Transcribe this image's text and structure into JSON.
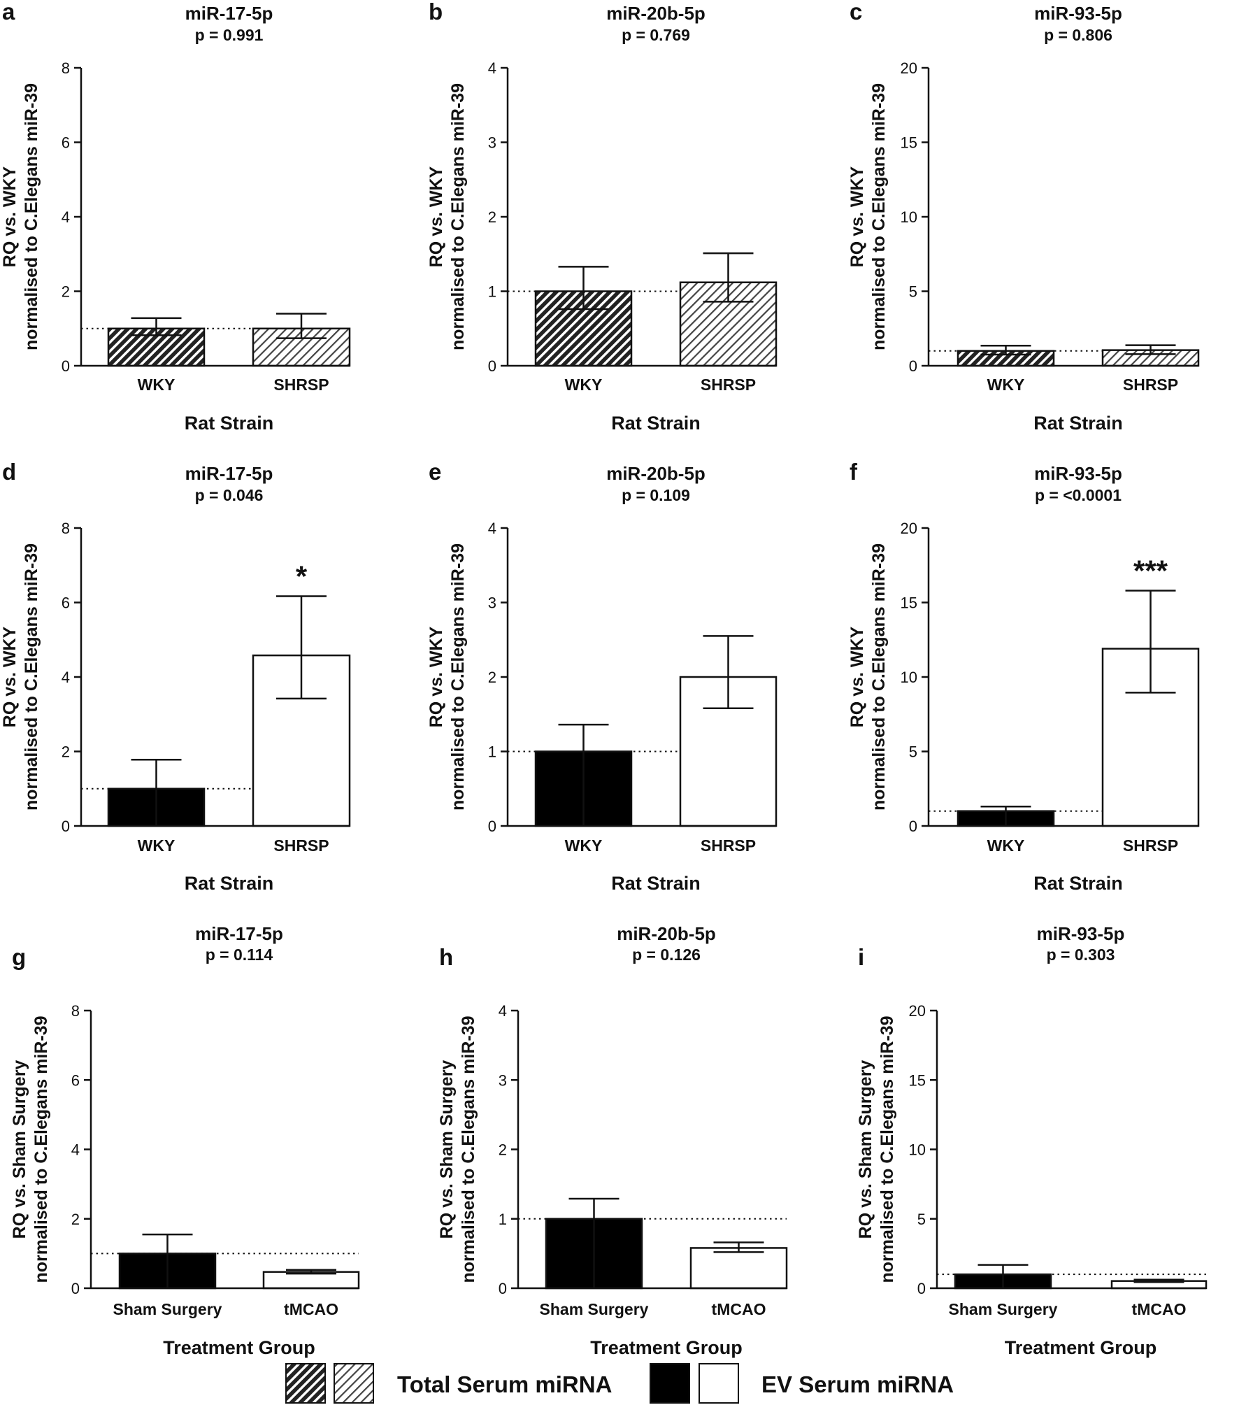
{
  "figure": {
    "legend": {
      "total_label": "Total Serum miRNA",
      "ev_label": "EV Serum miRNA"
    }
  },
  "chart_data": [
    {
      "panel": "a",
      "type": "bar",
      "title": "miR-17-5p",
      "subtitle": "p = 0.991",
      "xlabel": "Rat Strain",
      "ylabel": [
        "RQ vs. WKY",
        "normalised to C.Elegans miR-39"
      ],
      "ylim": [
        0,
        8
      ],
      "yticks": [
        0,
        2,
        4,
        6,
        8
      ],
      "reference_line": 1,
      "categories": [
        "WKY",
        "SHRSP"
      ],
      "values": [
        1.0,
        1.0
      ],
      "error_high": [
        1.28,
        1.4
      ],
      "error_low": [
        0.82,
        0.74
      ],
      "fill": [
        "hatch-dark",
        "hatch-light"
      ],
      "annotations": [
        "",
        ""
      ]
    },
    {
      "panel": "b",
      "type": "bar",
      "title": "miR-20b-5p",
      "subtitle": "p = 0.769",
      "xlabel": "Rat Strain",
      "ylabel": [
        "RQ vs. WKY",
        "normalised to C.Elegans miR-39"
      ],
      "ylim": [
        0,
        4
      ],
      "yticks": [
        0,
        1,
        2,
        3,
        4
      ],
      "reference_line": 1,
      "categories": [
        "WKY",
        "SHRSP"
      ],
      "values": [
        1.0,
        1.12
      ],
      "error_high": [
        1.33,
        1.51
      ],
      "error_low": [
        0.76,
        0.86
      ],
      "fill": [
        "hatch-dark",
        "hatch-light"
      ],
      "annotations": [
        "",
        ""
      ]
    },
    {
      "panel": "c",
      "type": "bar",
      "title": "miR-93-5p",
      "subtitle": "p = 0.806",
      "xlabel": "Rat Strain",
      "ylabel": [
        "RQ vs. WKY",
        "normalised to C.Elegans miR-39"
      ],
      "ylim": [
        0,
        20
      ],
      "yticks": [
        0,
        5,
        10,
        15,
        20
      ],
      "reference_line": 1,
      "categories": [
        "WKY",
        "SHRSP"
      ],
      "values": [
        1.0,
        1.05
      ],
      "error_high": [
        1.35,
        1.38
      ],
      "error_low": [
        0.75,
        0.78
      ],
      "fill": [
        "hatch-dark",
        "hatch-light"
      ],
      "annotations": [
        "",
        ""
      ]
    },
    {
      "panel": "d",
      "type": "bar",
      "title": "miR-17-5p",
      "subtitle": "p = 0.046",
      "xlabel": "Rat Strain",
      "ylabel": [
        "RQ vs. WKY",
        "normalised to C.Elegans miR-39"
      ],
      "ylim": [
        0,
        8
      ],
      "yticks": [
        0,
        2,
        4,
        6,
        8
      ],
      "reference_line": 1,
      "categories": [
        "WKY",
        "SHRSP"
      ],
      "values": [
        1.0,
        4.58
      ],
      "error_high": [
        1.78,
        6.17
      ],
      "error_low": [
        0.0,
        3.42
      ],
      "fill": [
        "black",
        "white"
      ],
      "annotations": [
        "",
        "*"
      ]
    },
    {
      "panel": "e",
      "type": "bar",
      "title": "miR-20b-5p",
      "subtitle": "p = 0.109",
      "xlabel": "Rat Strain",
      "ylabel": [
        "RQ vs. WKY",
        "normalised to C.Elegans miR-39"
      ],
      "ylim": [
        0,
        4
      ],
      "yticks": [
        0,
        1,
        2,
        3,
        4
      ],
      "reference_line": 1,
      "categories": [
        "WKY",
        "SHRSP"
      ],
      "values": [
        1.0,
        2.0
      ],
      "error_high": [
        1.36,
        2.55
      ],
      "error_low": [
        0.0,
        1.58
      ],
      "fill": [
        "black",
        "white"
      ],
      "annotations": [
        "",
        ""
      ]
    },
    {
      "panel": "f",
      "type": "bar",
      "title": "miR-93-5p",
      "subtitle": "p = <0.0001",
      "xlabel": "Rat Strain",
      "ylabel": [
        "RQ vs. WKY",
        "normalised to C.Elegans miR-39"
      ],
      "ylim": [
        0,
        20
      ],
      "yticks": [
        0,
        5,
        10,
        15,
        20
      ],
      "reference_line": 1,
      "categories": [
        "WKY",
        "SHRSP"
      ],
      "values": [
        1.0,
        11.9
      ],
      "error_high": [
        1.3,
        15.8
      ],
      "error_low": [
        0.0,
        8.95
      ],
      "fill": [
        "black",
        "white"
      ],
      "annotations": [
        "",
        "***"
      ]
    },
    {
      "panel": "g",
      "type": "bar",
      "title": "miR-17-5p",
      "subtitle": "p = 0.114",
      "xlabel": "Treatment Group",
      "ylabel": [
        "RQ vs. Sham Surgery",
        "normalised to C.Elegans miR-39"
      ],
      "ylim": [
        0,
        8
      ],
      "yticks": [
        0,
        2,
        4,
        6,
        8
      ],
      "reference_line": 1,
      "categories": [
        "Sham Surgery",
        "tMCAO"
      ],
      "values": [
        1.0,
        0.47
      ],
      "error_high": [
        1.55,
        0.53
      ],
      "error_low": [
        0.0,
        0.42
      ],
      "fill": [
        "black",
        "white"
      ],
      "annotations": [
        "",
        ""
      ]
    },
    {
      "panel": "h",
      "type": "bar",
      "title": "miR-20b-5p",
      "subtitle": "p = 0.126",
      "xlabel": "Treatment Group",
      "ylabel": [
        "RQ vs. Sham Surgery",
        "normalised to C.Elegans miR-39"
      ],
      "ylim": [
        0,
        4
      ],
      "yticks": [
        0,
        1,
        2,
        3,
        4
      ],
      "reference_line": 1,
      "categories": [
        "Sham Surgery",
        "tMCAO"
      ],
      "values": [
        1.0,
        0.58
      ],
      "error_high": [
        1.29,
        0.66
      ],
      "error_low": [
        0.0,
        0.52
      ],
      "fill": [
        "black",
        "white"
      ],
      "annotations": [
        "",
        ""
      ]
    },
    {
      "panel": "i",
      "type": "bar",
      "title": "miR-93-5p",
      "subtitle": "p = 0.303",
      "xlabel": "Treatment Group",
      "ylabel": [
        "RQ vs. Sham Surgery",
        "normalised to C.Elegans miR-39"
      ],
      "ylim": [
        0,
        20
      ],
      "yticks": [
        0,
        5,
        10,
        15,
        20
      ],
      "reference_line": 1,
      "categories": [
        "Sham Surgery",
        "tMCAO"
      ],
      "values": [
        1.0,
        0.52
      ],
      "error_high": [
        1.68,
        0.62
      ],
      "error_low": [
        0.0,
        0.44
      ],
      "fill": [
        "black",
        "white"
      ],
      "annotations": [
        "",
        ""
      ]
    }
  ]
}
